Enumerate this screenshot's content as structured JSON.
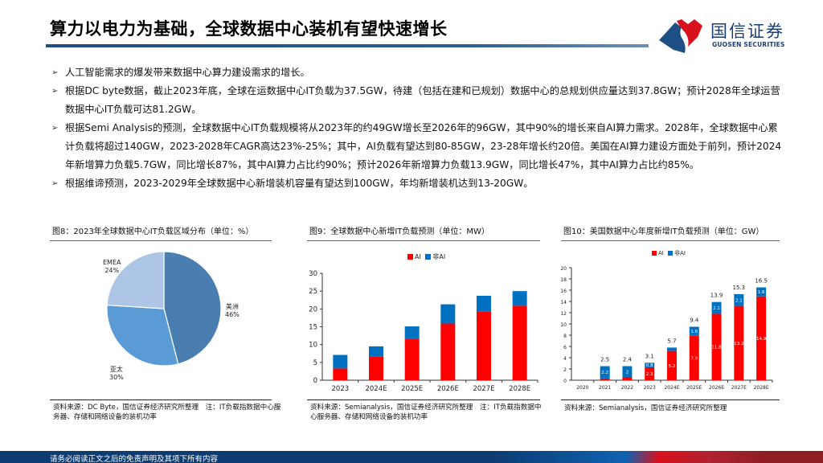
{
  "header": {
    "title": "算力以电力为基础，全球数据中心装机有望快速增长",
    "logo_cn": "国信证券",
    "logo_en": "GUOSEN SECURITIES"
  },
  "bullets": [
    "人工智能需求的爆发带来数据中心算力建设需求的增长。",
    "根据DC byte数据，截止2023年底，全球在运数据中心IT负载为37.5GW，待建（包括在建和已规划）数据中心的总规划供应量达到37.8GW；预计2028年全球运营数据中心IT负载可达81.2GW。",
    "根据Semi Analysis的预测，全球数据中心IT负载规模将从2023年的约49GW增长至2026年的96GW，其中90%的增长来自AI算力需求。2028年，全球数据中心累计负载将超过140GW，2023-2028年CAGR高达23%-25%；其中，AI负载有望达到80-85GW，23-28年增长约20倍。美国在AI算力建设方面处于前列，预计2024年新增算力负载5.7GW，同比增长87%，其中AI算力占比约90%；预计2026年新增算力负载13.9GW，同比增长47%，其中AI算力占比约85%。",
    "根据维谛预测，2023-2029年全球数据中心新增装机容量有望达到100GW，年均新增装机达到13-20GW。"
  ],
  "colors": {
    "ai": "#ff0000",
    "non_ai": "#0070c0",
    "pie_americas": "#4a7eb0",
    "pie_apac": "#5b9bd5",
    "pie_emea": "#adc6e5",
    "brand_blue": "#0c3c72",
    "brand_red": "#d8121c"
  },
  "panels": [
    {
      "title": "图8：2023年全球数据中心IT负载区域分布（单位：%）",
      "source": "资料来源：DC Byte，国信证券经济研究所整理　注：IT负载指数据中心服务器、存储和网络设备的装机功率"
    },
    {
      "title": "图9：全球数据中心新增IT负载预测（单位：MW）",
      "source": "资料来源：Semianalysis，国信证券经济研究所整理　注：IT负载指数据中心服务器、存储和网络设备的装机功率"
    },
    {
      "title": "图10：美国数据中心年度新增IT负载预测（单位：GW）",
      "source": "资料来源：Semianalysis，国信证券经济研究所整理"
    }
  ],
  "legend": {
    "ai": "AI",
    "non_ai": "非AI"
  },
  "footer": {
    "disclaimer": "请务必阅读正文之后的免责声明及其项下所有内容"
  },
  "chart_data": [
    {
      "type": "pie",
      "title": "图8：2023年全球数据中心IT负载区域分布（单位：%）",
      "labels": [
        "美洲",
        "亚太",
        "EMEA"
      ],
      "values": [
        46,
        30,
        24
      ],
      "label_text": [
        "美洲\n46%",
        "亚太\n30%",
        "EMEA\n24%"
      ]
    },
    {
      "type": "bar",
      "stacked": true,
      "title": "图9：全球数据中心新增IT负载预测（单位：MW）",
      "categories": [
        "2023",
        "2024E",
        "2025E",
        "2026E",
        "2027E",
        "2028E"
      ],
      "series": [
        {
          "name": "AI",
          "values": [
            3.3,
            6.7,
            11.7,
            15.9,
            19.2,
            20.9
          ]
        },
        {
          "name": "非AI",
          "values": [
            3.8,
            2.8,
            3.4,
            5.4,
            4.5,
            4.1
          ]
        }
      ],
      "totals": [
        7.1,
        9.5,
        15.1,
        21.3,
        23.7,
        25.0
      ],
      "ylim": [
        0,
        30
      ],
      "yticks": [
        0,
        5,
        10,
        15,
        20,
        25,
        30
      ],
      "legend_position": "top"
    },
    {
      "type": "bar",
      "stacked": true,
      "title": "图10：美国数据中心年度新增IT负载预测（单位：GW）",
      "categories": [
        "2020",
        "2021",
        "2022",
        "2023",
        "2024E",
        "2025E",
        "2026E",
        "2027E",
        "2028E"
      ],
      "series": [
        {
          "name": "AI",
          "values": [
            0,
            0.3,
            0.5,
            2.3,
            5.2,
            7.9,
            11.8,
            13.2,
            14.9
          ]
        },
        {
          "name": "非AI",
          "values": [
            0,
            2.2,
            2.0,
            0.8,
            0.6,
            1.6,
            2.1,
            2.1,
            1.6
          ]
        }
      ],
      "totals": [
        0,
        2.5,
        2.4,
        3.1,
        5.7,
        9.4,
        13.9,
        15.3,
        16.5
      ],
      "total_labels": [
        "",
        "2.5",
        "2.4",
        "3.1",
        "5.7",
        "9.4",
        "13.9",
        "15.3",
        "16.5"
      ],
      "ylim": [
        0,
        20
      ],
      "yticks": [
        0,
        2,
        4,
        6,
        8,
        10,
        12,
        14,
        16,
        18,
        20
      ],
      "legend_position": "top"
    }
  ]
}
